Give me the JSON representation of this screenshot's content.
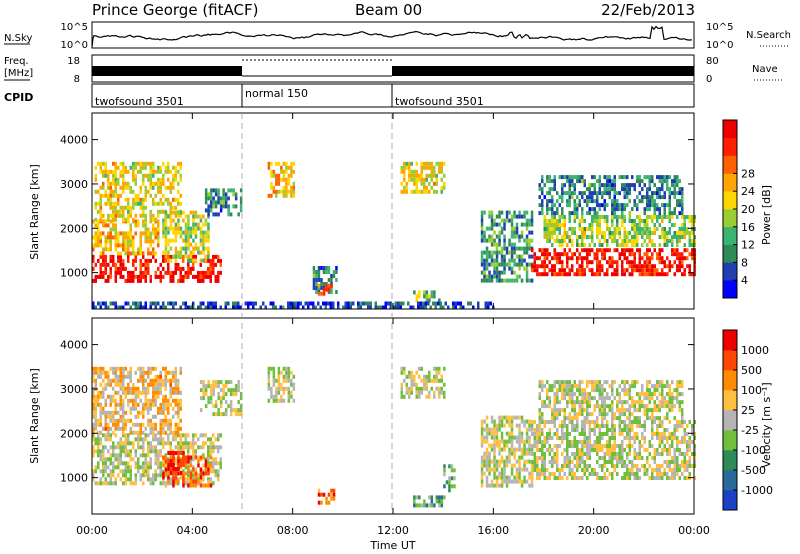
{
  "header": {
    "station": "Prince George (fitACF)",
    "beam": "Beam 00",
    "date": "22/Feb/2013"
  },
  "top_panels": {
    "nsky_label": "N.Sky",
    "nsky_ticks": [
      "10^5",
      "10^0"
    ],
    "nsearch_label": "N.Search",
    "nsearch_ticks": [
      "10^5",
      "10^0"
    ],
    "freq_label_1": "Freq.",
    "freq_label_2": "[MHz]",
    "freq_ticks": [
      "18",
      "8"
    ],
    "nave_label": "Nave",
    "nave_ticks": [
      "80",
      "0"
    ],
    "cpid_label": "CPID",
    "cpid_segments": [
      {
        "label": "twofsound 3501",
        "start": 0,
        "end": 6
      },
      {
        "label": "normal 150",
        "start": 6,
        "end": 12
      },
      {
        "label": "twofsound 3501",
        "start": 12,
        "end": 24
      }
    ]
  },
  "chart_data": [
    {
      "type": "heatmap",
      "name": "Power",
      "xlabel": "Time UT",
      "ylabel": "Slant Range [km]",
      "xlim": [
        0,
        24
      ],
      "ylim": [
        180,
        4600
      ],
      "yticks": [
        "1000",
        "2000",
        "3000",
        "4000"
      ],
      "xticks": [
        "00:00",
        "04:00",
        "08:00",
        "12:00",
        "16:00",
        "20:00",
        "00:00"
      ],
      "colorbar_label": "Power [dB]",
      "colorbar_ticks": [
        "4",
        "8",
        "12",
        "16",
        "20",
        "24",
        "28"
      ],
      "colorbar_colors": [
        "#0000ff",
        "#2040b0",
        "#2e8b57",
        "#3cb371",
        "#9acd32",
        "#ffd700",
        "#ffa500",
        "#ff6000",
        "#ff2000",
        "#ee0000"
      ],
      "regions": [
        {
          "t0": 0.0,
          "t1": 5.1,
          "r0": 850,
          "r1": 1400,
          "level": 0.92
        },
        {
          "t0": 0.0,
          "t1": 2.6,
          "r0": 1400,
          "r1": 2200,
          "level": 0.6
        },
        {
          "t0": 0.1,
          "t1": 3.5,
          "r0": 2200,
          "r1": 3500,
          "level": 0.55
        },
        {
          "t0": 2.8,
          "t1": 4.6,
          "r0": 1300,
          "r1": 2400,
          "level": 0.5
        },
        {
          "t0": 4.5,
          "t1": 5.9,
          "r0": 2300,
          "r1": 2900,
          "level": 0.25
        },
        {
          "t0": 7.0,
          "t1": 8.0,
          "r0": 2700,
          "r1": 3500,
          "level": 0.6
        },
        {
          "t0": 8.8,
          "t1": 9.7,
          "r0": 550,
          "r1": 1150,
          "level": 0.25
        },
        {
          "t0": 9.0,
          "t1": 9.5,
          "r0": 550,
          "r1": 750,
          "level": 0.75
        },
        {
          "t0": 12.3,
          "t1": 14.0,
          "r0": 2800,
          "r1": 3500,
          "level": 0.55
        },
        {
          "t0": 12.8,
          "t1": 13.8,
          "r0": 350,
          "r1": 600,
          "level": 0.4
        },
        {
          "t0": 15.5,
          "t1": 17.5,
          "r0": 850,
          "r1": 2400,
          "level": 0.3
        },
        {
          "t0": 17.5,
          "t1": 24.0,
          "r0": 950,
          "r1": 1550,
          "level": 0.9
        },
        {
          "t0": 18.0,
          "t1": 24.0,
          "r0": 1650,
          "r1": 2300,
          "level": 0.45
        },
        {
          "t0": 17.8,
          "t1": 23.5,
          "r0": 2300,
          "r1": 3200,
          "level": 0.25
        },
        {
          "t0": 0.0,
          "t1": 16.0,
          "r0": 180,
          "r1": 350,
          "level": 0.15
        }
      ]
    },
    {
      "type": "heatmap",
      "name": "Velocity",
      "xlabel": "Time UT",
      "ylabel": "Slant Range [km]",
      "xlim": [
        0,
        24
      ],
      "ylim": [
        180,
        4600
      ],
      "yticks": [
        "1000",
        "2000",
        "3000",
        "4000"
      ],
      "xticks": [
        "00:00",
        "04:00",
        "08:00",
        "12:00",
        "16:00",
        "20:00",
        "00:00"
      ],
      "colorbar_label": "Velocity [m s⁻¹]",
      "colorbar_ticks": [
        "1000",
        "500",
        "100",
        "25",
        "-25",
        "-100",
        "-500",
        "-1000"
      ],
      "colorbar_colors": [
        "#1e40c8",
        "#2a6a9a",
        "#2e8b57",
        "#6fbf3c",
        "#b4b4b4",
        "#ffbf40",
        "#ff8c00",
        "#ff4500",
        "#ee0000"
      ],
      "regions": [
        {
          "t0": 0.0,
          "t1": 5.1,
          "r0": 850,
          "r1": 2000,
          "level": 0.5
        },
        {
          "t0": 0.0,
          "t1": 3.5,
          "r0": 2000,
          "r1": 3500,
          "level": 0.62
        },
        {
          "t0": 2.8,
          "t1": 4.7,
          "r0": 850,
          "r1": 1500,
          "level": 0.78
        },
        {
          "t0": 3.0,
          "t1": 3.6,
          "r0": 1100,
          "r1": 1600,
          "level": 0.95
        },
        {
          "t0": 4.3,
          "t1": 5.9,
          "r0": 2400,
          "r1": 3200,
          "level": 0.5
        },
        {
          "t0": 7.0,
          "t1": 8.0,
          "r0": 2700,
          "r1": 3500,
          "level": 0.5
        },
        {
          "t0": 9.0,
          "t1": 9.6,
          "r0": 450,
          "r1": 750,
          "level": 0.8
        },
        {
          "t0": 12.3,
          "t1": 14.0,
          "r0": 2800,
          "r1": 3500,
          "level": 0.5
        },
        {
          "t0": 12.8,
          "t1": 14.0,
          "r0": 350,
          "r1": 600,
          "level": 0.35
        },
        {
          "t0": 14.0,
          "t1": 14.4,
          "r0": 700,
          "r1": 1300,
          "level": 0.3
        },
        {
          "t0": 15.5,
          "t1": 17.5,
          "r0": 850,
          "r1": 2400,
          "level": 0.5
        },
        {
          "t0": 17.5,
          "t1": 24.0,
          "r0": 950,
          "r1": 2300,
          "level": 0.5
        },
        {
          "t0": 17.8,
          "t1": 23.5,
          "r0": 2300,
          "r1": 3200,
          "level": 0.5
        }
      ]
    }
  ]
}
